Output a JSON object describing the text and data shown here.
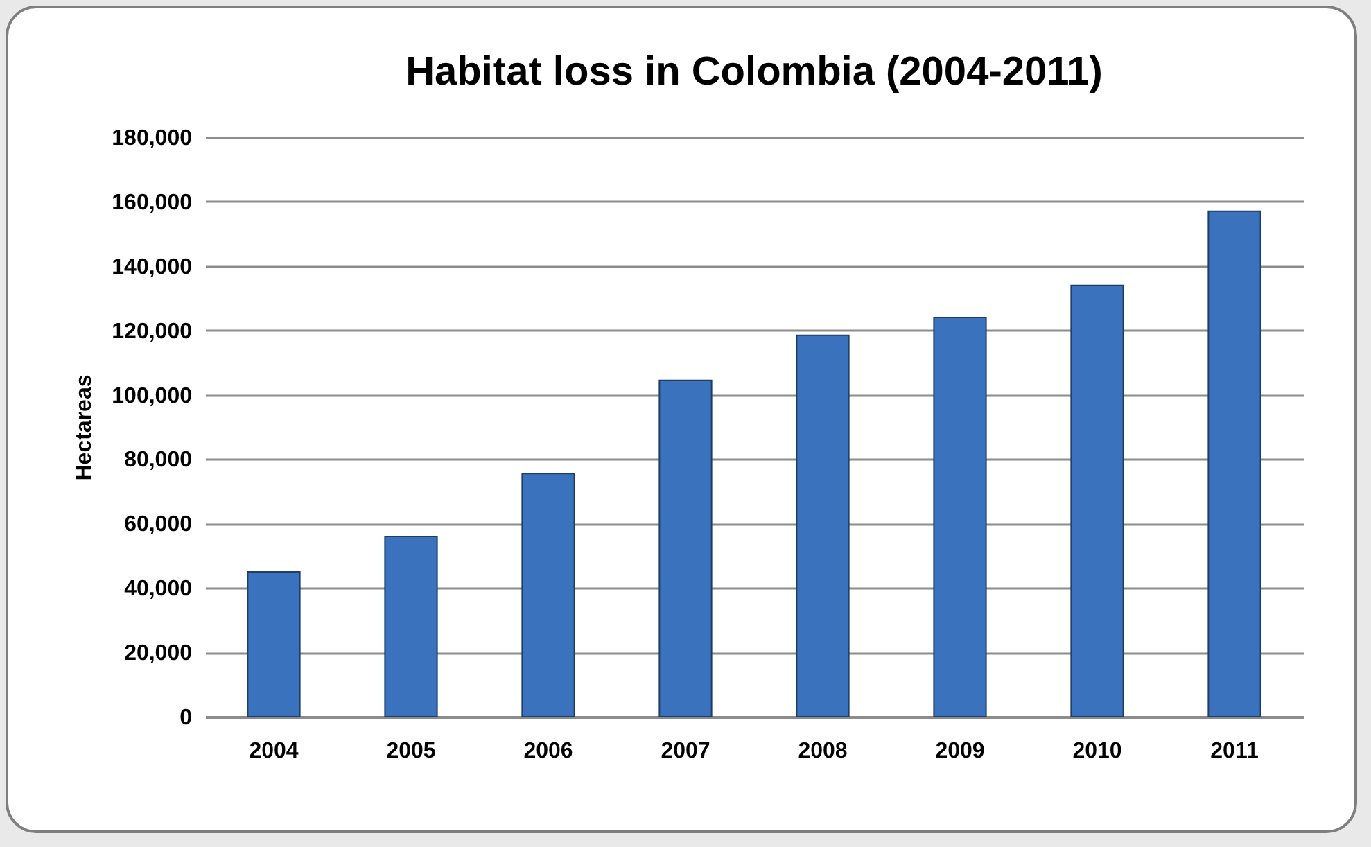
{
  "chart_data": {
    "type": "bar",
    "title": "Habitat loss in Colombia (2004-2011)",
    "ylabel": "Hectareas",
    "categories": [
      "2004",
      "2005",
      "2006",
      "2007",
      "2008",
      "2009",
      "2010",
      "2011"
    ],
    "values": [
      45000,
      56000,
      75500,
      104500,
      118500,
      124000,
      134000,
      157000
    ],
    "color": "#3a72be",
    "ylim": [
      0,
      180000
    ],
    "yticks": [
      0,
      {
        "value": 20000,
        "label": "20,000"
      },
      {
        "value": 40000,
        "label": "40,000"
      },
      {
        "value": 60000,
        "label": "60,000"
      },
      {
        "value": 80000,
        "label": "80,000"
      },
      {
        "value": 100000,
        "label": "100,000"
      },
      {
        "value": 120000,
        "label": "120,000"
      },
      {
        "value": 140000,
        "label": "140,000"
      },
      {
        "value": 160000,
        "label": "160,000"
      },
      {
        "value": 180000,
        "label": "180,000"
      }
    ],
    "grid": "y"
  }
}
